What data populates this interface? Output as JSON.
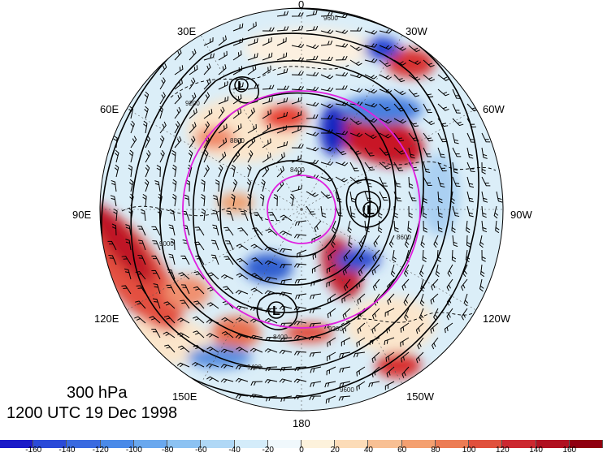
{
  "map": {
    "projection": "polar stereographic, north pole",
    "level_label": "300 hPa",
    "time_label": "1200 UTC 19 Dec 1998",
    "longitude_labels": {
      "top": "0",
      "upper_left": "30E",
      "upper_right": "30W",
      "left_upper": "60E",
      "right_upper": "60W",
      "left": "90E",
      "right": "90W",
      "left_lower": "120E",
      "right_lower": "120W",
      "lower_left": "150E",
      "lower_right": "150W",
      "bottom": "180"
    },
    "low_markers": [
      "L",
      "L",
      "L"
    ],
    "contour_labels": [
      "9600",
      "9200",
      "8800",
      "8400",
      "9000",
      "8600",
      "8400",
      "9600",
      "9200",
      "9400"
    ],
    "colors": {
      "circle_overlay": "#e020e0",
      "positive": "#c00020",
      "negative": "#1030d0"
    }
  },
  "colorbar": {
    "ticks": [
      "-160",
      "-140",
      "-120",
      "-100",
      "-80",
      "-60",
      "-40",
      "-20",
      "0",
      "20",
      "40",
      "60",
      "80",
      "100",
      "120",
      "140",
      "160"
    ],
    "colors": [
      "#1a1ac8",
      "#2a4ad8",
      "#3a6ae0",
      "#4a8ae8",
      "#6aa8ee",
      "#8cc2f2",
      "#b0d8f6",
      "#d4ecfa",
      "#f0f8fc",
      "#fdf2dc",
      "#fcdcb8",
      "#f8c094",
      "#f4a070",
      "#ec7c54",
      "#e0503c",
      "#cc2830",
      "#b01020",
      "#900010"
    ]
  }
}
